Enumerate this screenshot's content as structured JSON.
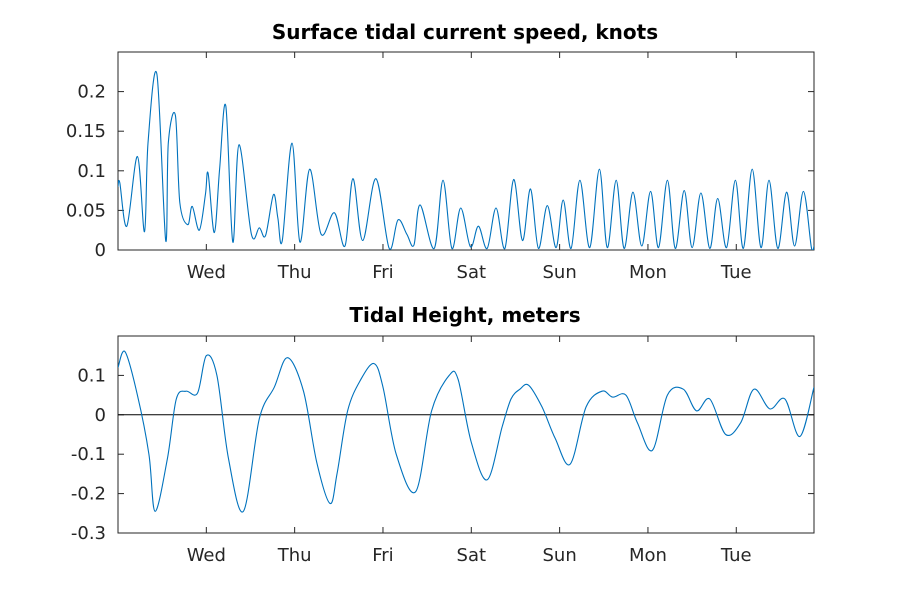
{
  "chart_data": [
    {
      "type": "line",
      "title": "Surface tidal current speed, knots",
      "xlabel": "",
      "ylabel": "",
      "ylim": [
        0,
        0.25
      ],
      "yticks": [
        0,
        0.05,
        0.1,
        0.15,
        0.2
      ],
      "ytick_labels": [
        "0",
        "0.05",
        "0.1",
        "0.15",
        "0.2"
      ],
      "xlim": [
        0,
        7.88
      ],
      "xticks": [
        1,
        2,
        3,
        4,
        5,
        6,
        7
      ],
      "xtick_labels": [
        "Wed",
        "Thu",
        "Fri",
        "Sat",
        "Sun",
        "Mon",
        "Tue"
      ],
      "grid": false,
      "series": [
        {
          "color": "#0072BD",
          "x": [
            0,
            0.02,
            0.1,
            0.22,
            0.3,
            0.34,
            0.44,
            0.54,
            0.57,
            0.65,
            0.7,
            0.79,
            0.84,
            0.92,
            0.99,
            1.02,
            1.09,
            1.15,
            1.22,
            1.3,
            1.37,
            1.51,
            1.6,
            1.67,
            1.76,
            1.81,
            1.86,
            1.97,
            2.06,
            2.17,
            2.3,
            2.45,
            2.57,
            2.66,
            2.77,
            2.92,
            3.07,
            3.17,
            3.27,
            3.35,
            3.42,
            3.58,
            3.68,
            3.78,
            3.88,
            3.99,
            4.08,
            4.18,
            4.28,
            4.38,
            4.48,
            4.58,
            4.67,
            4.76,
            4.86,
            4.96,
            5.04,
            5.13,
            5.23,
            5.34,
            5.45,
            5.54,
            5.64,
            5.73,
            5.83,
            5.93,
            6.03,
            6.12,
            6.22,
            6.31,
            6.41,
            6.5,
            6.6,
            6.7,
            6.79,
            6.89,
            6.99,
            7.08,
            7.18,
            7.28,
            7.37,
            7.47,
            7.57,
            7.66,
            7.76,
            7.85,
            7.88
          ],
          "y": [
            0.08,
            0.085,
            0.03,
            0.118,
            0.023,
            0.135,
            0.222,
            0.012,
            0.135,
            0.17,
            0.06,
            0.032,
            0.055,
            0.025,
            0.07,
            0.097,
            0.022,
            0.102,
            0.182,
            0.01,
            0.133,
            0.02,
            0.028,
            0.018,
            0.07,
            0.04,
            0.012,
            0.135,
            0.01,
            0.102,
            0.02,
            0.047,
            0.005,
            0.09,
            0.012,
            0.09,
            0.002,
            0.038,
            0.02,
            0.006,
            0.057,
            0.002,
            0.088,
            0.002,
            0.053,
            0.004,
            0.03,
            0.002,
            0.053,
            0.002,
            0.089,
            0.012,
            0.077,
            0.002,
            0.056,
            0.003,
            0.063,
            0.002,
            0.088,
            0.003,
            0.102,
            0.003,
            0.088,
            0.002,
            0.073,
            0.005,
            0.074,
            0.003,
            0.088,
            0.002,
            0.075,
            0.003,
            0.072,
            0.002,
            0.065,
            0.003,
            0.088,
            0.002,
            0.102,
            0.003,
            0.088,
            0.002,
            0.073,
            0.005,
            0.074,
            0.003,
            0.005
          ]
        }
      ]
    },
    {
      "type": "line",
      "title": "Tidal Height, meters",
      "xlabel": "",
      "ylabel": "",
      "ylim": [
        -0.3,
        0.2
      ],
      "yticks": [
        -0.3,
        -0.2,
        -0.1,
        0,
        0.1
      ],
      "ytick_labels": [
        "-0.3",
        "-0.2",
        "-0.1",
        "0",
        "0.1"
      ],
      "xlim": [
        0,
        7.88
      ],
      "xticks": [
        1,
        2,
        3,
        4,
        5,
        6,
        7
      ],
      "xtick_labels": [
        "Wed",
        "Thu",
        "Fri",
        "Sat",
        "Sun",
        "Mon",
        "Tue"
      ],
      "grid": false,
      "reference_line": 0,
      "series": [
        {
          "color": "#0072BD",
          "x": [
            0,
            0.08,
            0.22,
            0.35,
            0.42,
            0.56,
            0.66,
            0.77,
            0.9,
            1.0,
            1.12,
            1.25,
            1.42,
            1.6,
            1.77,
            1.92,
            2.1,
            2.25,
            2.4,
            2.48,
            2.6,
            2.75,
            2.9,
            3.0,
            3.15,
            3.37,
            3.55,
            3.75,
            3.85,
            4.0,
            4.18,
            4.35,
            4.45,
            4.55,
            4.65,
            4.8,
            4.95,
            5.12,
            5.3,
            5.48,
            5.6,
            5.75,
            5.88,
            6.05,
            6.22,
            6.4,
            6.55,
            6.7,
            6.88,
            7.05,
            7.2,
            7.38,
            7.55,
            7.72,
            7.88
          ],
          "y": [
            0.12,
            0.16,
            0.05,
            -0.1,
            -0.245,
            -0.11,
            0.04,
            0.06,
            0.055,
            0.15,
            0.1,
            -0.11,
            -0.245,
            -0.01,
            0.07,
            0.145,
            0.06,
            -0.12,
            -0.225,
            -0.15,
            0.01,
            0.09,
            0.13,
            0.07,
            -0.1,
            -0.195,
            0.01,
            0.1,
            0.09,
            -0.07,
            -0.165,
            -0.03,
            0.04,
            0.065,
            0.075,
            0.02,
            -0.06,
            -0.125,
            0.02,
            0.06,
            0.045,
            0.05,
            -0.02,
            -0.09,
            0.05,
            0.065,
            0.01,
            0.04,
            -0.05,
            -0.02,
            0.065,
            0.015,
            0.04,
            -0.055,
            0.07
          ]
        }
      ]
    }
  ]
}
